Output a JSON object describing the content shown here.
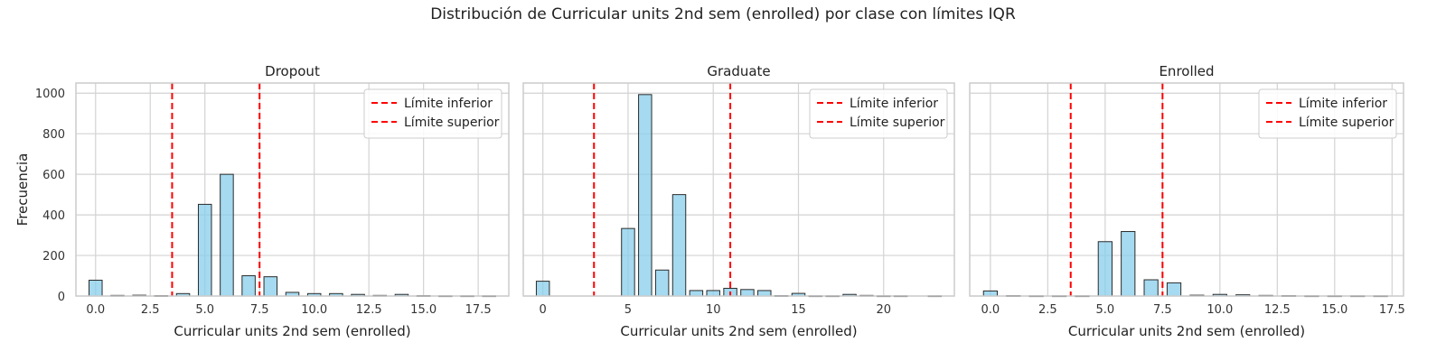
{
  "figure": {
    "suptitle": "Distribución de Curricular units 2nd sem (enrolled) por clase con límites IQR",
    "ylabel": "Frecuencia"
  },
  "style": {
    "bar_fill": "#87ceeb",
    "bar_stroke": "#2b2b2b",
    "line_color": "#ff0000",
    "grid_color": "#d3d3d3",
    "axes_edge": "#cccccc"
  },
  "chart_data": [
    {
      "type": "bar",
      "title": "Dropout",
      "xlabel": "Curricular units 2nd sem (enrolled)",
      "ylabel": "Frecuencia",
      "xlim": [
        -0.9,
        18.9
      ],
      "ylim": [
        0,
        1050
      ],
      "xticks": [
        0,
        2.5,
        5,
        7.5,
        10,
        12.5,
        15,
        17.5
      ],
      "xtick_labels": [
        "0.0",
        "2.5",
        "5.0",
        "7.5",
        "10.0",
        "12.5",
        "15.0",
        "17.5"
      ],
      "yticks": [
        0,
        200,
        400,
        600,
        800,
        1000
      ],
      "bin_width": 0.6,
      "bars": [
        {
          "x": 0,
          "count": 78
        },
        {
          "x": 1,
          "count": 3
        },
        {
          "x": 2,
          "count": 4
        },
        {
          "x": 3,
          "count": 2
        },
        {
          "x": 4,
          "count": 12
        },
        {
          "x": 5,
          "count": 452
        },
        {
          "x": 6,
          "count": 600
        },
        {
          "x": 7,
          "count": 100
        },
        {
          "x": 8,
          "count": 95
        },
        {
          "x": 9,
          "count": 18
        },
        {
          "x": 10,
          "count": 12
        },
        {
          "x": 11,
          "count": 12
        },
        {
          "x": 12,
          "count": 8
        },
        {
          "x": 13,
          "count": 3
        },
        {
          "x": 14,
          "count": 8
        },
        {
          "x": 15,
          "count": 2
        },
        {
          "x": 16,
          "count": 1
        },
        {
          "x": 17,
          "count": 1
        },
        {
          "x": 18,
          "count": 1
        }
      ],
      "lower_limit": 3.5,
      "upper_limit": 7.5,
      "legend": [
        "Límite inferior",
        "Límite superior"
      ],
      "legend_position": "top-right",
      "grid": true
    },
    {
      "type": "bar",
      "title": "Graduate",
      "xlabel": "Curricular units 2nd sem (enrolled)",
      "ylabel": "Frecuencia",
      "xlim": [
        -1.15,
        24.15
      ],
      "ylim": [
        0,
        1050
      ],
      "xticks": [
        0,
        5,
        10,
        15,
        20
      ],
      "xtick_labels": [
        "0",
        "5",
        "10",
        "15",
        "20"
      ],
      "yticks": [
        0,
        200,
        400,
        600,
        800,
        1000
      ],
      "bin_width": 0.767,
      "bars": [
        {
          "x": 0,
          "count": 73
        },
        {
          "x": 5,
          "count": 333
        },
        {
          "x": 6,
          "count": 993
        },
        {
          "x": 7,
          "count": 128
        },
        {
          "x": 8,
          "count": 500
        },
        {
          "x": 9,
          "count": 27
        },
        {
          "x": 10,
          "count": 27
        },
        {
          "x": 11,
          "count": 38
        },
        {
          "x": 12,
          "count": 32
        },
        {
          "x": 13,
          "count": 27
        },
        {
          "x": 14,
          "count": 2
        },
        {
          "x": 15,
          "count": 13
        },
        {
          "x": 16,
          "count": 1
        },
        {
          "x": 17,
          "count": 1
        },
        {
          "x": 18,
          "count": 8
        },
        {
          "x": 19,
          "count": 3
        },
        {
          "x": 20,
          "count": 1
        },
        {
          "x": 21,
          "count": 1
        },
        {
          "x": 23,
          "count": 1
        }
      ],
      "lower_limit": 3.0,
      "upper_limit": 11.0,
      "legend": [
        "Límite inferior",
        "Límite superior"
      ],
      "legend_position": "top-right",
      "grid": true
    },
    {
      "type": "bar",
      "title": "Enrolled",
      "xlabel": "Curricular units 2nd sem (enrolled)",
      "ylabel": "Frecuencia",
      "xlim": [
        -0.9,
        18.0
      ],
      "ylim": [
        0,
        1050
      ],
      "xticks": [
        0,
        2.5,
        5,
        7.5,
        10,
        12.5,
        15,
        17.5
      ],
      "xtick_labels": [
        "0.0",
        "2.5",
        "5.0",
        "7.5",
        "10.0",
        "12.5",
        "15.0",
        "17.5"
      ],
      "yticks": [
        0,
        200,
        400,
        600,
        800,
        1000
      ],
      "bin_width": 0.6,
      "bars": [
        {
          "x": 0,
          "count": 25
        },
        {
          "x": 1,
          "count": 2
        },
        {
          "x": 2,
          "count": 1
        },
        {
          "x": 3,
          "count": 1
        },
        {
          "x": 4,
          "count": 1
        },
        {
          "x": 5,
          "count": 268
        },
        {
          "x": 6,
          "count": 318
        },
        {
          "x": 7,
          "count": 80
        },
        {
          "x": 8,
          "count": 65
        },
        {
          "x": 9,
          "count": 4
        },
        {
          "x": 10,
          "count": 8
        },
        {
          "x": 11,
          "count": 6
        },
        {
          "x": 12,
          "count": 3
        },
        {
          "x": 13,
          "count": 2
        },
        {
          "x": 14,
          "count": 1
        },
        {
          "x": 15,
          "count": 1
        },
        {
          "x": 16,
          "count": 1
        },
        {
          "x": 17,
          "count": 1
        }
      ],
      "lower_limit": 3.5,
      "upper_limit": 7.5,
      "legend": [
        "Límite inferior",
        "Límite superior"
      ],
      "legend_position": "top-right",
      "grid": true
    }
  ]
}
